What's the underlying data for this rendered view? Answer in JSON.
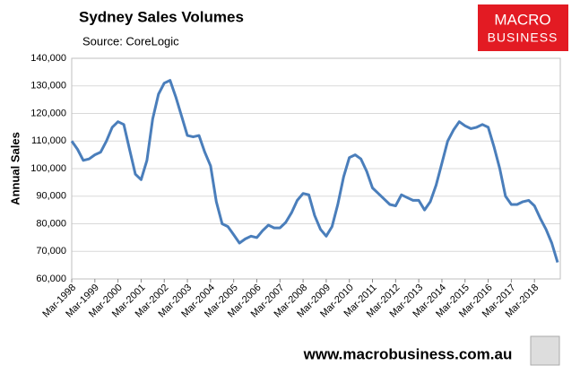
{
  "chart_data": {
    "type": "line",
    "title": "Sydney Sales Volumes",
    "subtitle": "Source: CoreLogic",
    "y_label": "Annual Sales",
    "categories": [
      "Mar-1998",
      null,
      null,
      null,
      "Mar-1999",
      null,
      null,
      null,
      "Mar-2000",
      null,
      null,
      null,
      "Mar-2001",
      null,
      null,
      null,
      "Mar-2002",
      null,
      null,
      null,
      "Mar-2003",
      null,
      null,
      null,
      "Mar-2004",
      null,
      null,
      null,
      "Mar-2005",
      null,
      null,
      null,
      "Mar-2006",
      null,
      null,
      null,
      "Mar-2007",
      null,
      null,
      null,
      "Mar-2008",
      null,
      null,
      null,
      "Mar-2009",
      null,
      null,
      null,
      "Mar-2010",
      null,
      null,
      null,
      "Mar-2011",
      null,
      null,
      null,
      "Mar-2012",
      null,
      null,
      null,
      "Mar-2013",
      null,
      null,
      null,
      "Mar-2014",
      null,
      null,
      null,
      "Mar-2015",
      null,
      null,
      null,
      "Mar-2016",
      null,
      null,
      null,
      "Mar-2017",
      null,
      null,
      null,
      "Mar-2018",
      null,
      null,
      null,
      null
    ],
    "values": [
      110000,
      107000,
      103000,
      103500,
      105000,
      106000,
      110000,
      115000,
      117000,
      116000,
      107000,
      98000,
      96000,
      103000,
      118000,
      127000,
      131000,
      132000,
      126000,
      119000,
      112000,
      111500,
      112000,
      106000,
      101000,
      88000,
      80000,
      79000,
      76000,
      73000,
      74500,
      75500,
      75000,
      77500,
      79500,
      78500,
      78500,
      80500,
      84000,
      88500,
      91000,
      90500,
      83000,
      78000,
      75500,
      79000,
      87000,
      97000,
      104000,
      105000,
      103500,
      99000,
      93000,
      91000,
      89000,
      87000,
      86500,
      90500,
      89500,
      88500,
      88500,
      85000,
      88000,
      94000,
      102000,
      110000,
      114000,
      117000,
      115500,
      114500,
      115000,
      116000,
      115000,
      108000,
      100000,
      90000,
      87000,
      87000,
      88000,
      88500,
      86500,
      82000,
      78000,
      73000,
      66000
    ],
    "color": "#4a7ebb",
    "ylim": [
      60000,
      140000
    ],
    "yticks": [
      {
        "value": 60000,
        "label": "60,000"
      },
      {
        "value": 70000,
        "label": "70,000"
      },
      {
        "value": 80000,
        "label": "80,000"
      },
      {
        "value": 90000,
        "label": "90,000"
      },
      {
        "value": 100000,
        "label": "100,000"
      },
      {
        "value": 110000,
        "label": "110,000"
      },
      {
        "value": 120000,
        "label": "120,000"
      },
      {
        "value": 130000,
        "label": "130,000"
      },
      {
        "value": 140000,
        "label": "140,000"
      }
    ],
    "grid": true
  },
  "logo": {
    "line1": "MACRO",
    "line2": "BUSINESS"
  },
  "footer": "www.macrobusiness.com.au"
}
